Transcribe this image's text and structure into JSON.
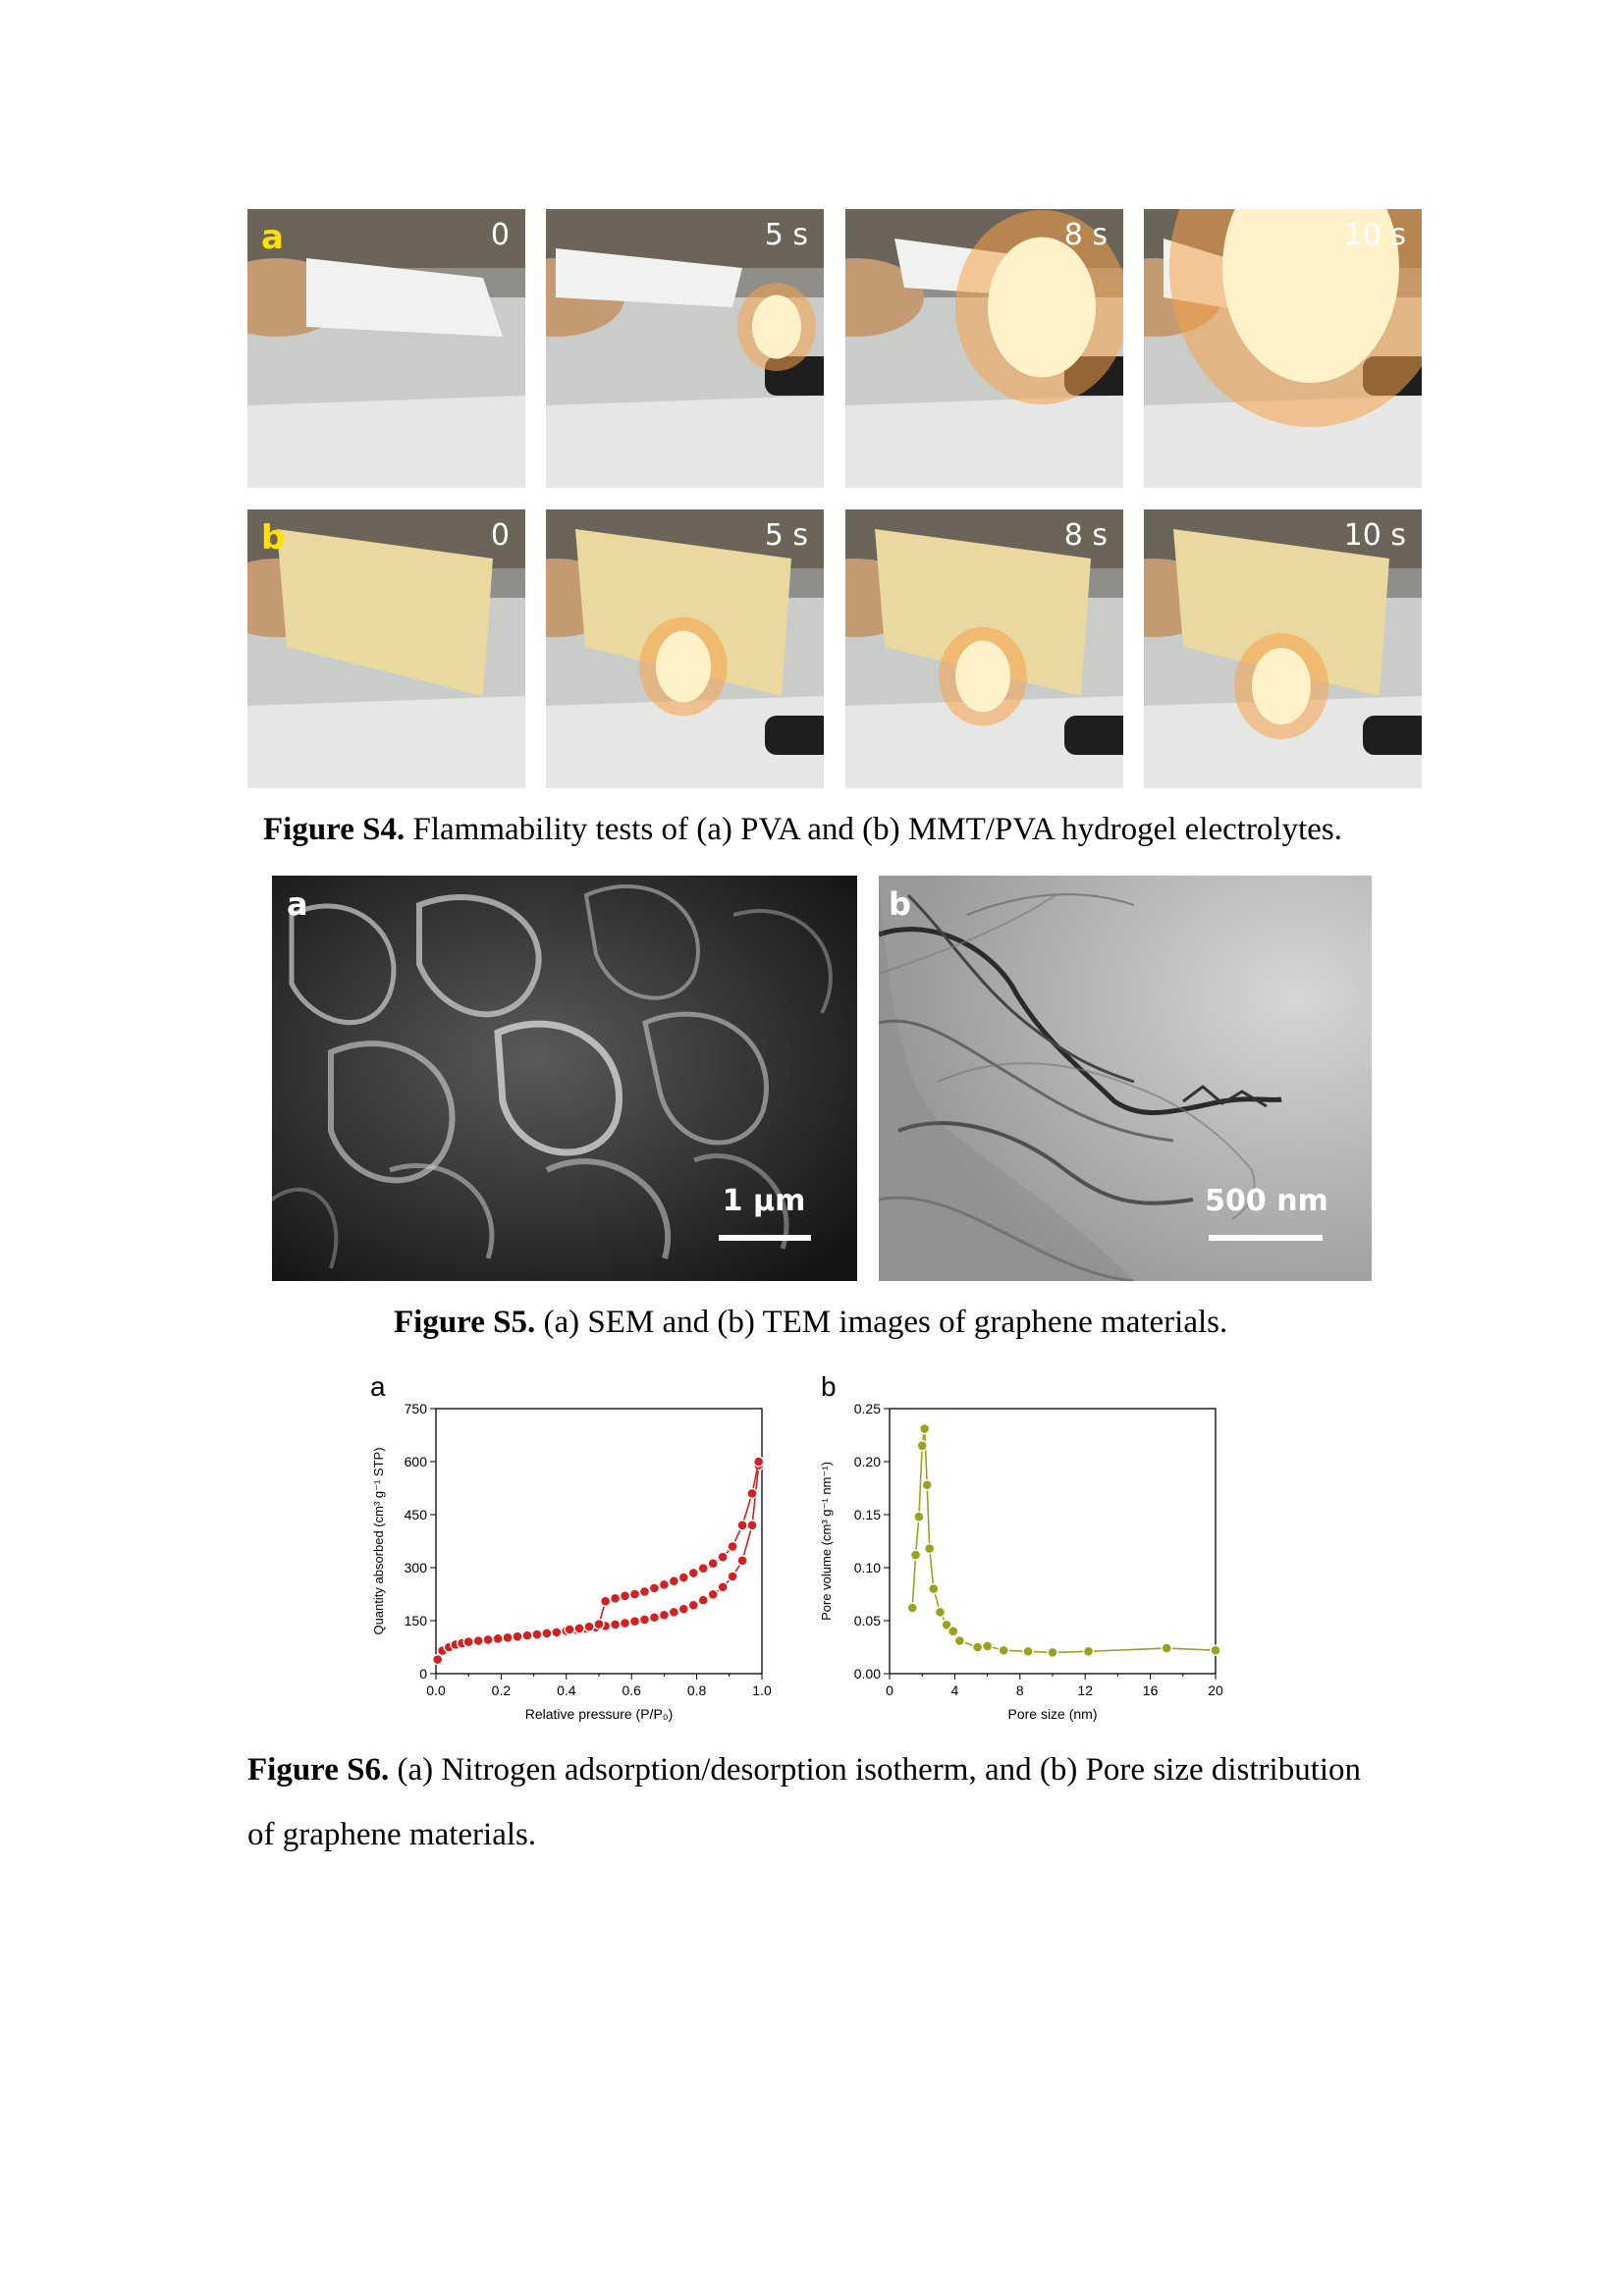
{
  "figure_s4": {
    "row_a": {
      "label": "a",
      "times": [
        "0",
        "5 s",
        "8 s",
        "10 s"
      ]
    },
    "row_b": {
      "label": "b",
      "times": [
        "0",
        "5 s",
        "8 s",
        "10 s"
      ]
    },
    "caption_bold": "Figure S4.",
    "caption_text": " Flammability tests of (a) PVA and (b) MMT/PVA hydrogel electrolytes."
  },
  "figure_s5": {
    "panel_a": {
      "label": "a",
      "scale": "1 µm"
    },
    "panel_b": {
      "label": "b",
      "scale": "500 nm"
    },
    "caption_bold": "Figure S5.",
    "caption_text": " (a) SEM and (b) TEM images of graphene materials."
  },
  "figure_s6": {
    "caption_bold": "Figure S6.",
    "caption_text_line1": " (a) Nitrogen adsorption/desorption isotherm, and (b) Pore size distribution",
    "caption_text_line2": "of graphene materials."
  },
  "chart_data": [
    {
      "panel": "a",
      "type": "line",
      "xlabel": "Relative pressure (P/P₀)",
      "ylabel": "Quantity absorbed (cm³ g⁻¹ STP)",
      "xlim": [
        0,
        1.0
      ],
      "ylim": [
        0,
        750
      ],
      "xticks": [
        "0.0",
        "0.2",
        "0.4",
        "0.6",
        "0.8",
        "1.0"
      ],
      "yticks": [
        "0",
        "150",
        "300",
        "450",
        "600",
        "750"
      ],
      "color": "#d42020",
      "series": [
        {
          "x": [
            0.005,
            0.02,
            0.04,
            0.06,
            0.08,
            0.1,
            0.13,
            0.16,
            0.19,
            0.22,
            0.25,
            0.28,
            0.31,
            0.34,
            0.37,
            0.4,
            0.43,
            0.46,
            0.49,
            0.52,
            0.55,
            0.58,
            0.61,
            0.64,
            0.67,
            0.7,
            0.73,
            0.76,
            0.79,
            0.82,
            0.85,
            0.88,
            0.91,
            0.94,
            0.97,
            0.99
          ],
          "values": [
            40,
            65,
            75,
            82,
            86,
            90,
            93,
            96,
            99,
            102,
            105,
            108,
            111,
            114,
            117,
            121,
            124,
            128,
            131,
            135,
            139,
            143,
            148,
            153,
            159,
            166,
            174,
            183,
            194,
            208,
            224,
            245,
            275,
            320,
            420,
            590
          ]
        },
        {
          "x": [
            0.99,
            0.97,
            0.94,
            0.91,
            0.88,
            0.85,
            0.82,
            0.79,
            0.76,
            0.73,
            0.7,
            0.67,
            0.64,
            0.61,
            0.58,
            0.55,
            0.52,
            0.5,
            0.47,
            0.44,
            0.41
          ],
          "values": [
            600,
            510,
            420,
            360,
            330,
            312,
            298,
            285,
            272,
            262,
            252,
            242,
            232,
            225,
            220,
            213,
            205,
            140,
            133,
            128,
            125
          ]
        }
      ]
    },
    {
      "panel": "b",
      "type": "line",
      "xlabel": "Pore size (nm)",
      "ylabel": "Pore volume (cm³ g⁻¹ nm⁻¹)",
      "xlim": [
        0,
        20
      ],
      "ylim": [
        0,
        0.25
      ],
      "xticks": [
        "0",
        "4",
        "8",
        "12",
        "16",
        "20"
      ],
      "yticks": [
        "0.00",
        "0.05",
        "0.10",
        "0.15",
        "0.20",
        "0.25"
      ],
      "color": "#9aa21c",
      "series": [
        {
          "x": [
            1.4,
            1.6,
            1.8,
            2.0,
            2.15,
            2.3,
            2.45,
            2.7,
            3.1,
            3.5,
            3.9,
            4.3,
            5.4,
            6.0,
            7.0,
            8.5,
            10.0,
            12.2,
            17.0,
            20.0
          ],
          "values": [
            0.062,
            0.112,
            0.148,
            0.215,
            0.231,
            0.178,
            0.118,
            0.08,
            0.058,
            0.046,
            0.04,
            0.031,
            0.025,
            0.026,
            0.022,
            0.021,
            0.02,
            0.021,
            0.024,
            0.022
          ]
        }
      ]
    }
  ]
}
